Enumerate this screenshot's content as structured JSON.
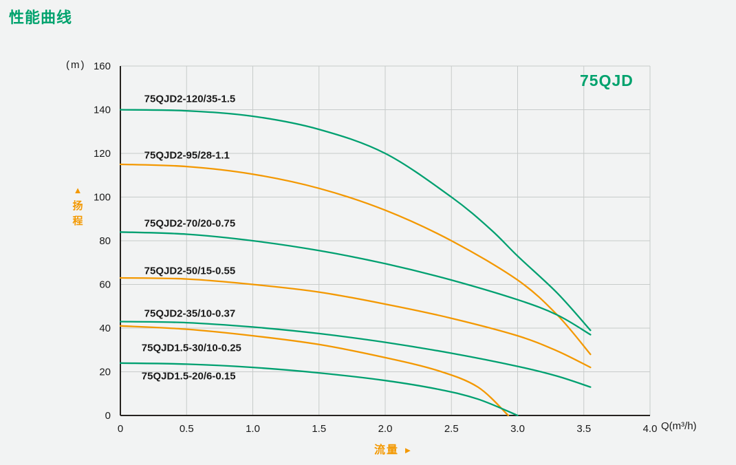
{
  "page_title": "性能曲线",
  "chart_data": {
    "type": "line",
    "title": "性能曲线",
    "family_label": "75QJD",
    "xlabel": "流量",
    "xlabel_arrow": "►",
    "ylabel": "扬程",
    "ylabel_arrow": "▲",
    "x_unit": "Q(m³/h)",
    "y_unit": "(m)",
    "xlim": [
      0,
      4
    ],
    "ylim": [
      0,
      160
    ],
    "x_ticks": [
      0,
      0.5,
      1,
      1.5,
      2,
      2.5,
      3,
      3.5,
      4
    ],
    "x_tick_labels": [
      "0",
      "0.5",
      "1.0",
      "1.5",
      "2.0",
      "2.5",
      "3.0",
      "3.5",
      "4.0"
    ],
    "y_ticks": [
      0,
      20,
      40,
      60,
      80,
      100,
      120,
      140,
      160
    ],
    "y_tick_labels": [
      "0",
      "20",
      "40",
      "60",
      "80",
      "100",
      "120",
      "140",
      "160"
    ],
    "grid": true,
    "legend_position": "labels-on-chart",
    "colors": {
      "green": "#00a070",
      "orange": "#f39800",
      "axis": "#26221f",
      "grid": "#c7cbca",
      "text": "#1a1a1a"
    },
    "series": [
      {
        "name": "75QJD2-120/35-1.5",
        "color": "green",
        "label_pos": {
          "x": 0.18,
          "y": 145
        },
        "points": [
          [
            0,
            140
          ],
          [
            0.5,
            139.5
          ],
          [
            1.0,
            137
          ],
          [
            1.5,
            131
          ],
          [
            2.0,
            120
          ],
          [
            2.5,
            100
          ],
          [
            2.8,
            85
          ],
          [
            3.0,
            73
          ],
          [
            3.3,
            56
          ],
          [
            3.55,
            39
          ]
        ]
      },
      {
        "name": "75QJD2-95/28-1.1",
        "color": "orange",
        "label_pos": {
          "x": 0.18,
          "y": 119
        },
        "points": [
          [
            0,
            115
          ],
          [
            0.5,
            114
          ],
          [
            1.0,
            110.5
          ],
          [
            1.5,
            104
          ],
          [
            2.0,
            94
          ],
          [
            2.5,
            80
          ],
          [
            3.0,
            62
          ],
          [
            3.3,
            46
          ],
          [
            3.55,
            28
          ]
        ]
      },
      {
        "name": "75QJD2-70/20-0.75",
        "color": "green",
        "label_pos": {
          "x": 0.18,
          "y": 88
        },
        "points": [
          [
            0,
            84
          ],
          [
            0.5,
            83
          ],
          [
            1.0,
            80
          ],
          [
            1.5,
            75.5
          ],
          [
            2.0,
            69.5
          ],
          [
            2.5,
            62
          ],
          [
            3.0,
            53
          ],
          [
            3.3,
            46
          ],
          [
            3.55,
            37
          ]
        ]
      },
      {
        "name": "75QJD2-50/15-0.55",
        "color": "orange",
        "label_pos": {
          "x": 0.18,
          "y": 66
        },
        "points": [
          [
            0,
            63
          ],
          [
            0.5,
            62.5
          ],
          [
            1.0,
            60
          ],
          [
            1.5,
            56.5
          ],
          [
            2.0,
            51
          ],
          [
            2.5,
            44.5
          ],
          [
            3.0,
            36.5
          ],
          [
            3.3,
            29.5
          ],
          [
            3.55,
            22
          ]
        ]
      },
      {
        "name": "75QJD2-35/10-0.37",
        "color": "green",
        "label_pos": {
          "x": 0.18,
          "y": 46.5
        },
        "points": [
          [
            0,
            43
          ],
          [
            0.5,
            42.5
          ],
          [
            1.0,
            40.5
          ],
          [
            1.5,
            37.5
          ],
          [
            2.0,
            33.5
          ],
          [
            2.5,
            28.5
          ],
          [
            3.0,
            22.5
          ],
          [
            3.3,
            18
          ],
          [
            3.55,
            13
          ]
        ]
      },
      {
        "name": "75QJD1.5-30/10-0.25",
        "color": "orange",
        "label_pos": {
          "x": 0.16,
          "y": 31
        },
        "points": [
          [
            0,
            41
          ],
          [
            0.5,
            39.5
          ],
          [
            1.0,
            36.5
          ],
          [
            1.5,
            32.5
          ],
          [
            2.0,
            26.5
          ],
          [
            2.4,
            20.5
          ],
          [
            2.7,
            13
          ],
          [
            2.93,
            0
          ]
        ]
      },
      {
        "name": "75QJD1.5-20/6-0.15",
        "color": "green",
        "label_pos": {
          "x": 0.16,
          "y": 18
        },
        "points": [
          [
            0,
            24
          ],
          [
            0.5,
            23.5
          ],
          [
            1.0,
            22
          ],
          [
            1.5,
            19.5
          ],
          [
            2.0,
            16
          ],
          [
            2.4,
            12
          ],
          [
            2.7,
            7.5
          ],
          [
            3.0,
            0
          ]
        ]
      }
    ]
  }
}
